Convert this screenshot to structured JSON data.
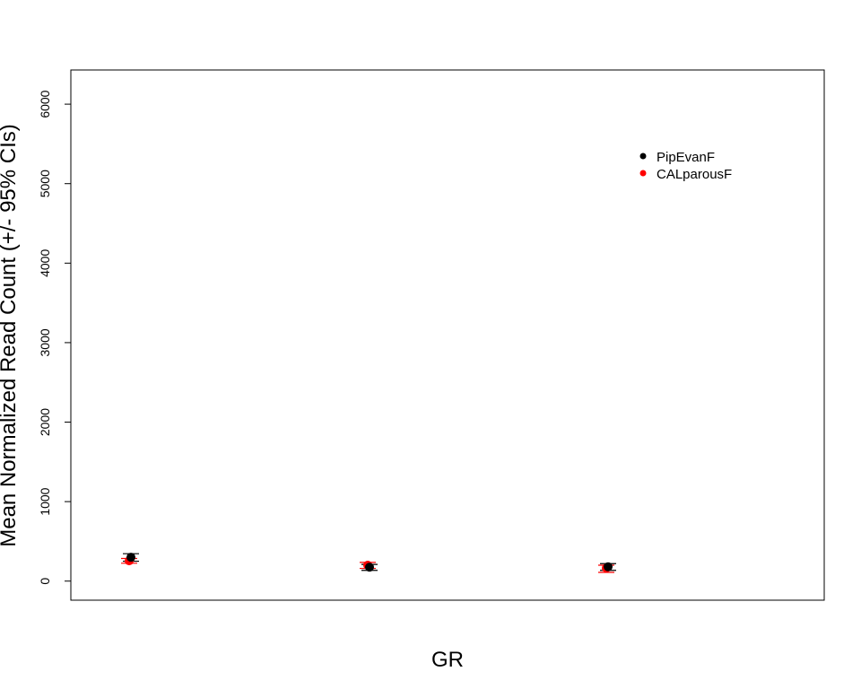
{
  "chart_data": {
    "type": "scatter",
    "title": "",
    "xlabel": "GR",
    "ylabel": "Mean Normalized Read Count (+/- 95% CIs)",
    "ylim": [
      -240,
      6430
    ],
    "y_ticks": [
      0,
      1000,
      2000,
      3000,
      4000,
      5000,
      6000
    ],
    "y_tick_labels": [
      "0",
      "1000",
      "2000",
      "3000",
      "4000",
      "5000",
      "6000"
    ],
    "grid": false,
    "legend_position": "top-right",
    "n_groups": 3,
    "series": [
      {
        "name": "PipEvanF",
        "color": "#000000",
        "values": [
          300,
          175,
          180
        ],
        "ci_low": [
          250,
          135,
          135
        ],
        "ci_high": [
          345,
          210,
          220
        ]
      },
      {
        "name": "CALparousF",
        "color": "#ff0000",
        "values": [
          255,
          200,
          165
        ],
        "ci_low": [
          225,
          160,
          110
        ],
        "ci_high": [
          285,
          235,
          200
        ]
      }
    ]
  }
}
